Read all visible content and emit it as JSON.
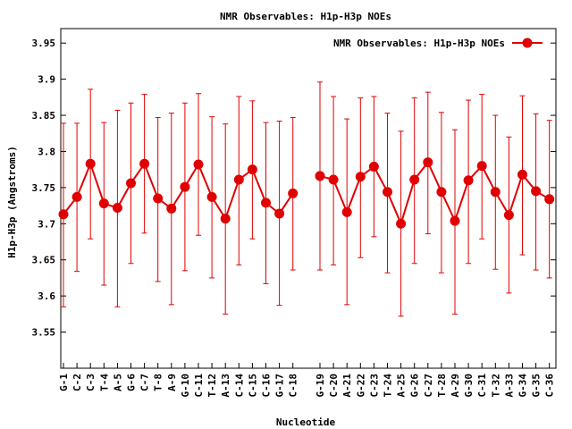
{
  "chart_data": {
    "type": "line",
    "title": "NMR Observables: H1p-H3p NOEs",
    "xlabel": "Nucleotide",
    "ylabel": "H1p-H3p (Angstroms)",
    "ylim": [
      3.5,
      3.97
    ],
    "yticks": [
      "3.55",
      "3.6",
      "3.65",
      "3.7",
      "3.75",
      "3.8",
      "3.85",
      "3.9",
      "3.95"
    ],
    "grid": false,
    "legend_position": "top-right",
    "series": [
      {
        "name": "NMR Observables: H1p-H3p NOEs",
        "color": "#e00000",
        "segments": [
          {
            "categories": [
              "G-1",
              "C-2",
              "C-3",
              "T-4",
              "A-5",
              "G-6",
              "C-7",
              "T-8",
              "A-9",
              "G-10",
              "C-11",
              "T-12",
              "A-13",
              "C-14",
              "C-15",
              "C-16",
              "G-17",
              "C-18"
            ],
            "values": [
              3.713,
              3.737,
              3.783,
              3.728,
              3.722,
              3.756,
              3.783,
              3.735,
              3.721,
              3.751,
              3.782,
              3.737,
              3.707,
              3.761,
              3.775,
              3.729,
              3.714,
              3.742
            ],
            "err_low": [
              3.585,
              3.634,
              3.679,
              3.615,
              3.585,
              3.645,
              3.687,
              3.62,
              3.588,
              3.635,
              3.684,
              3.625,
              3.575,
              3.643,
              3.679,
              3.617,
              3.587,
              3.636
            ],
            "err_high": [
              3.839,
              3.839,
              3.886,
              3.84,
              3.857,
              3.867,
              3.879,
              3.847,
              3.853,
              3.867,
              3.88,
              3.848,
              3.838,
              3.876,
              3.87,
              3.84,
              3.842,
              3.847
            ]
          },
          {
            "categories": [
              "G-19",
              "C-20",
              "A-21",
              "G-22",
              "C-23",
              "T-24",
              "A-25",
              "G-26",
              "C-27",
              "T-28",
              "A-29",
              "G-30",
              "C-31",
              "T-32",
              "A-33",
              "G-34",
              "G-35",
              "C-36"
            ],
            "values": [
              3.766,
              3.761,
              3.716,
              3.765,
              3.779,
              3.744,
              3.7,
              3.761,
              3.785,
              3.744,
              3.704,
              3.76,
              3.78,
              3.744,
              3.712,
              3.768,
              3.745,
              3.734
            ],
            "err_low": [
              3.636,
              3.643,
              3.588,
              3.653,
              3.682,
              3.632,
              3.572,
              3.645,
              3.686,
              3.632,
              3.575,
              3.645,
              3.679,
              3.637,
              3.604,
              3.657,
              3.636,
              3.625
            ],
            "err_high": [
              3.896,
              3.876,
              3.845,
              3.874,
              3.876,
              3.853,
              3.828,
              3.874,
              3.882,
              3.854,
              3.83,
              3.871,
              3.879,
              3.85,
              3.82,
              3.877,
              3.852,
              3.843
            ]
          }
        ]
      }
    ]
  }
}
